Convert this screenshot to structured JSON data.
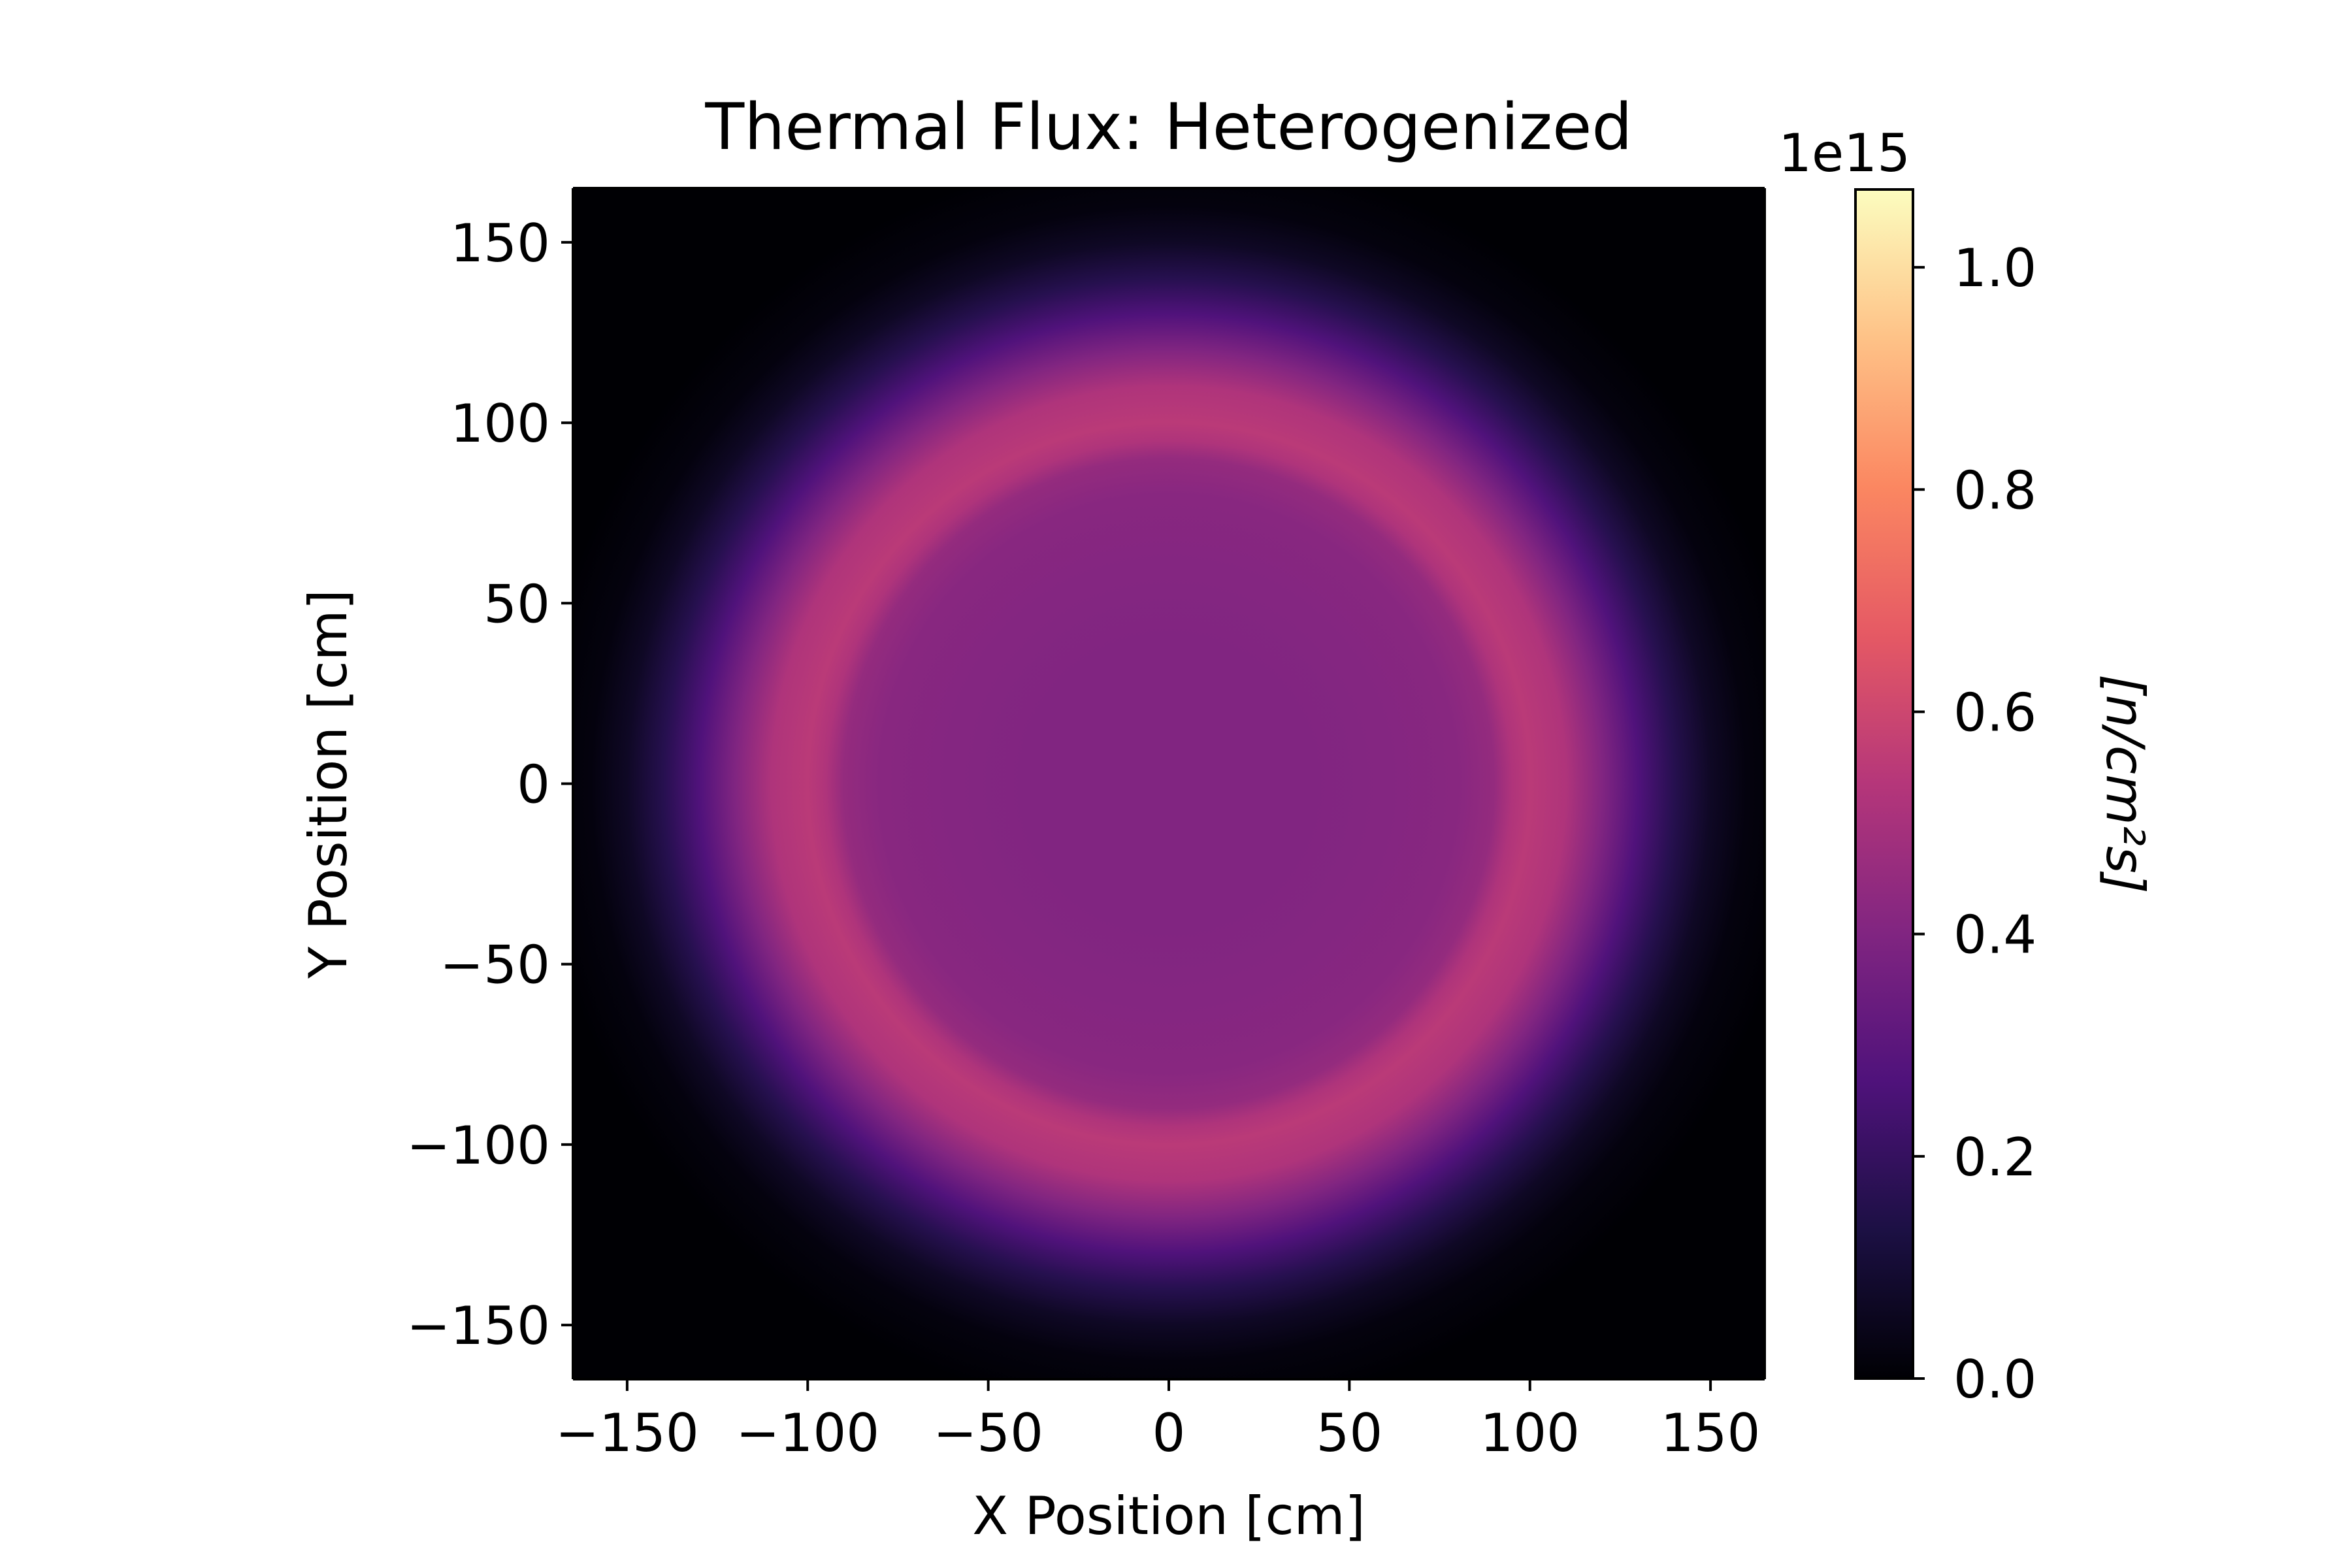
{
  "chart_data": {
    "type": "heatmap",
    "title": "Thermal Flux: Heterogenized",
    "xlabel": "X Position [cm]",
    "ylabel": "Y Position [cm]",
    "xlim": [
      -165,
      165
    ],
    "ylim": [
      -165,
      165
    ],
    "xticks": [
      -150,
      -100,
      -50,
      0,
      50,
      100,
      150
    ],
    "yticks": [
      -150,
      -100,
      -50,
      0,
      50,
      100,
      150
    ],
    "xtick_labels": [
      "−150",
      "−100",
      "−50",
      "0",
      "50",
      "100",
      "150"
    ],
    "ytick_labels": [
      "−150",
      "−100",
      "−50",
      "0",
      "50",
      "100",
      "150"
    ],
    "colormap": "magma",
    "colorbar": {
      "label": "[n/cm²s]",
      "offset_text": "1e15",
      "range": [
        0.0,
        1.07
      ],
      "ticks": [
        0.0,
        0.2,
        0.4,
        0.6,
        0.8,
        1.0
      ],
      "tick_labels": [
        "0.0",
        "0.2",
        "0.4",
        "0.6",
        "0.8",
        "1.0"
      ],
      "colors": [
        "#000004",
        "#1c1044",
        "#4f127b",
        "#812581",
        "#b5367a",
        "#e55964",
        "#fb8761",
        "#fec287",
        "#fcfdbf"
      ]
    },
    "radial_profile": {
      "radius_cm": [
        0,
        20,
        40,
        60,
        80,
        90,
        95,
        100,
        110,
        120,
        130,
        140,
        150,
        160,
        175
      ],
      "flux_1e15": [
        0.4,
        0.4,
        0.4,
        0.41,
        0.42,
        0.45,
        0.52,
        0.55,
        0.52,
        0.4,
        0.27,
        0.16,
        0.07,
        0.02,
        0.0
      ]
    },
    "grid": false
  }
}
